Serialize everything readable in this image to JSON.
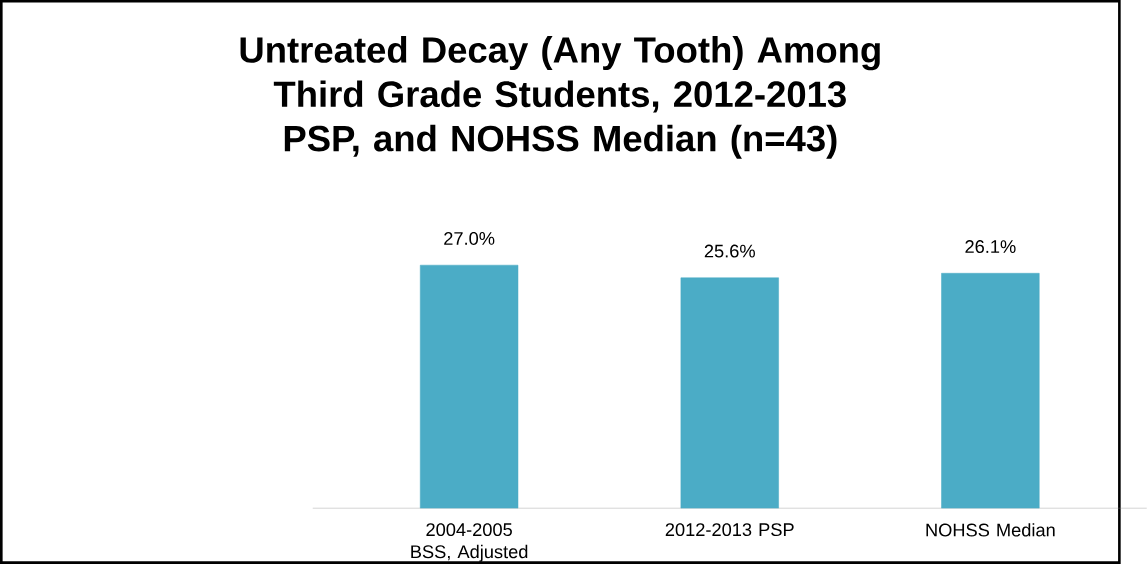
{
  "chart_data": {
    "type": "bar",
    "title": "Untreated Decay (Any Tooth) Among Third Grade Students, 2012-2013 PSP, and NOHSS Median (n=43)",
    "categories": [
      "2004-2005 BSS, Adjusted",
      "2012-2013 PSP",
      "NOHSS Median"
    ],
    "values": [
      27.0,
      25.6,
      26.1
    ],
    "value_labels": [
      "27.0%",
      "25.6%",
      "26.1%"
    ],
    "color": "#4bacc6"
  }
}
